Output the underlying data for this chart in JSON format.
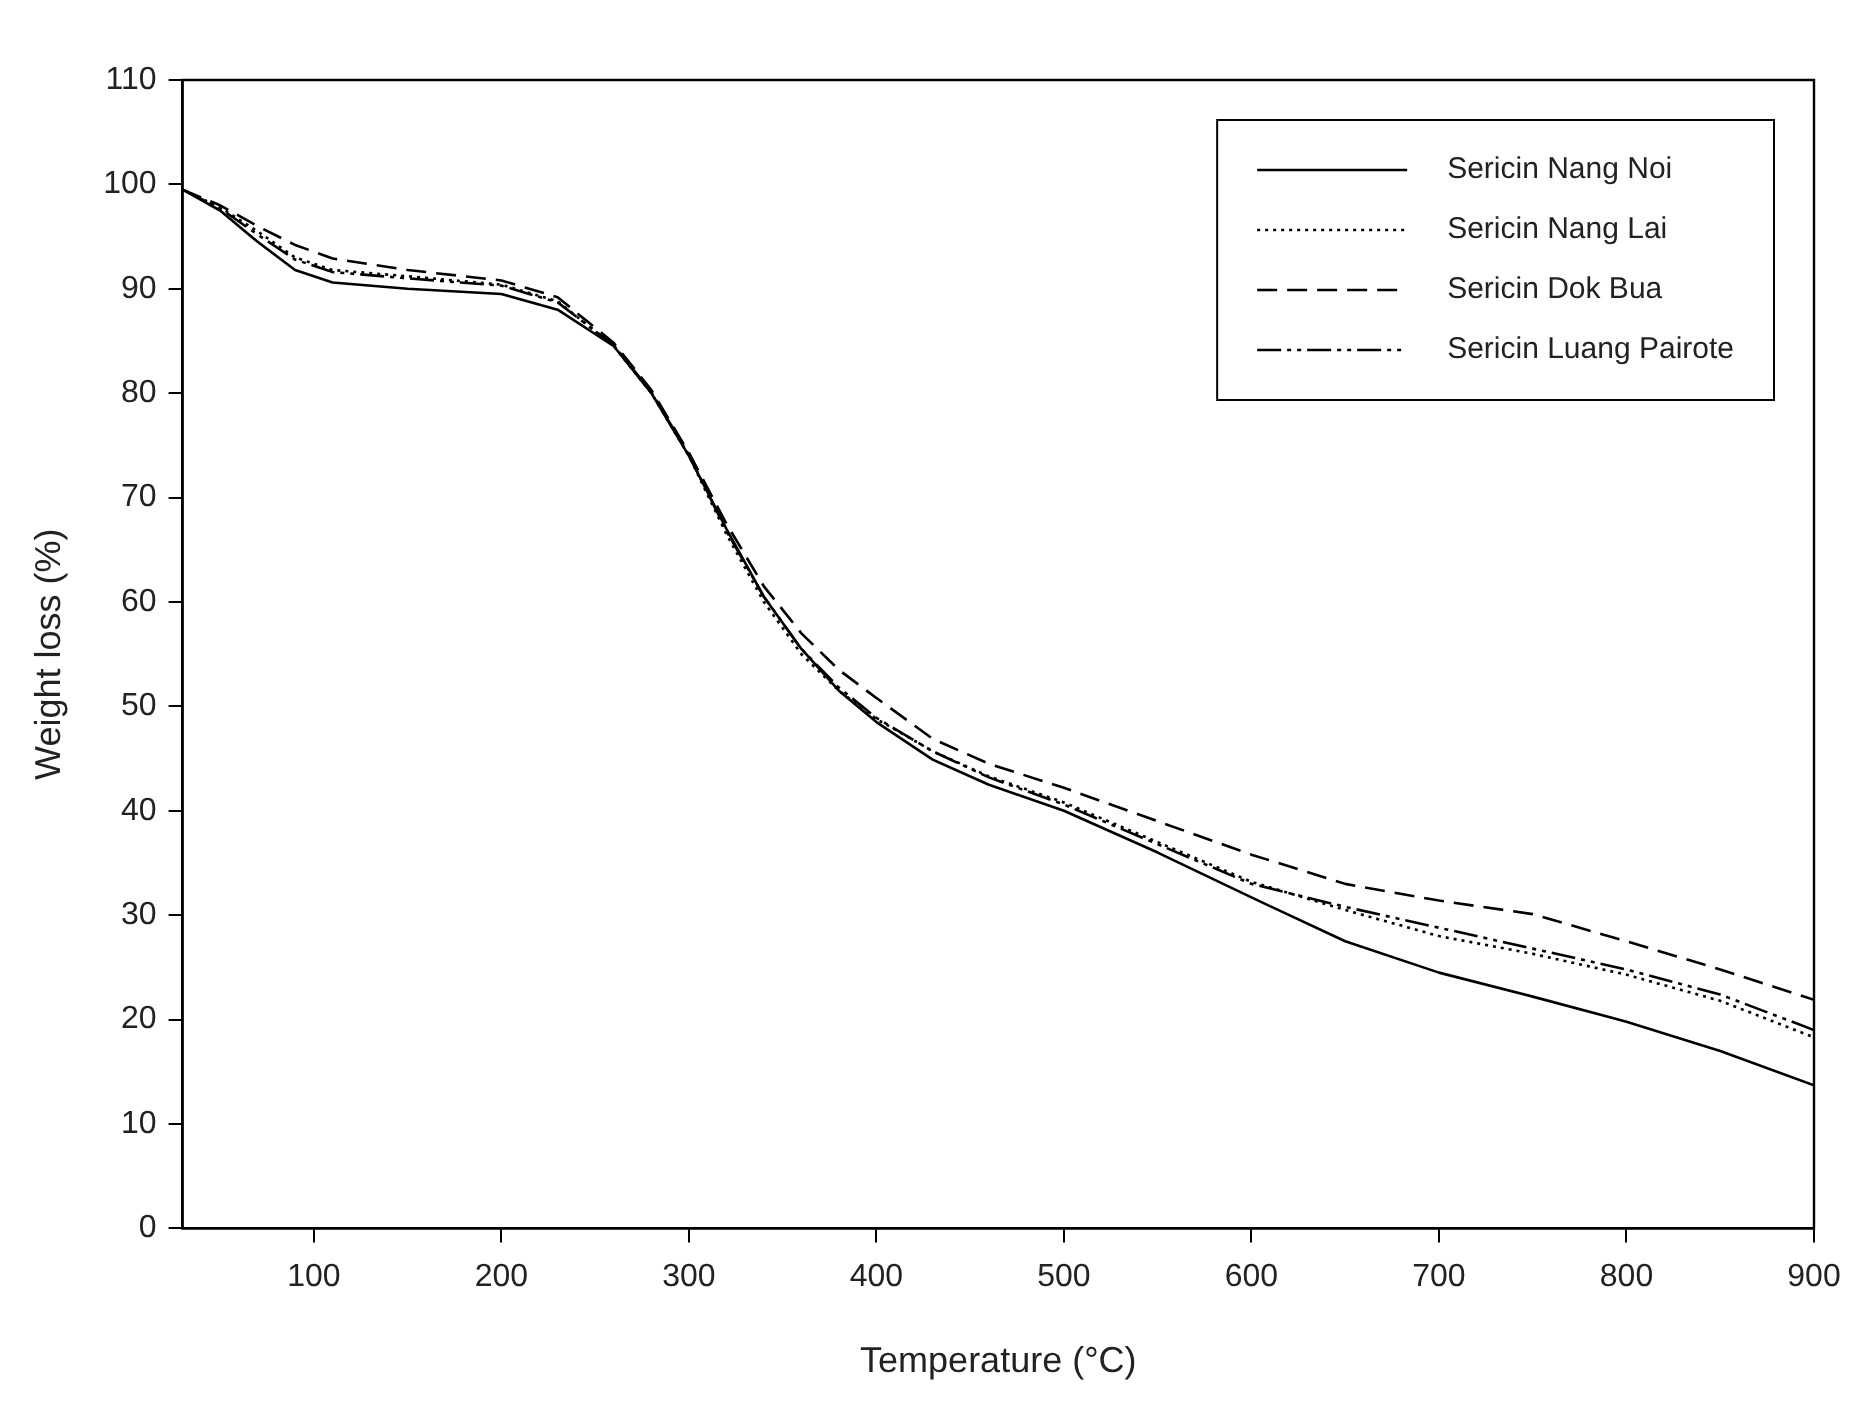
{
  "chart_data": {
    "type": "line",
    "xlabel": "Temperature (°C)",
    "ylabel": "Weight loss (%)",
    "x": [
      30,
      50,
      70,
      90,
      110,
      150,
      200,
      230,
      260,
      280,
      300,
      320,
      340,
      360,
      380,
      400,
      430,
      460,
      500,
      550,
      600,
      650,
      700,
      750,
      800,
      850,
      900
    ],
    "series": [
      {
        "name": "Sericin Nang Noi",
        "color": "#000000",
        "line_style": "solid",
        "values": [
          99.5,
          97.5,
          94.5,
          91.8,
          90.6,
          90.0,
          89.5,
          88.0,
          84.5,
          80,
          74,
          67,
          60.5,
          55.5,
          51.5,
          48.5,
          44.9,
          42.5,
          40,
          36,
          31.7,
          27.5,
          24.5,
          22.2,
          19.8,
          17,
          13.7
        ]
      },
      {
        "name": "Sericin Nang Lai",
        "color": "#000000",
        "line_style": "dotted",
        "values": [
          99.5,
          97.8,
          95.5,
          93,
          91.8,
          91.2,
          90.4,
          88.8,
          84.5,
          80,
          74,
          66.5,
          60,
          55,
          51.5,
          48.8,
          45.7,
          43.3,
          40.8,
          37,
          33.2,
          30.5,
          28,
          26.3,
          24.3,
          21.8,
          18.3
        ]
      },
      {
        "name": "Sericin Dok Bua",
        "color": "#000000",
        "line_style": "dashed",
        "values": [
          99.5,
          98,
          96,
          94.2,
          92.9,
          91.8,
          90.8,
          89.2,
          84.8,
          80.3,
          74.3,
          67.5,
          61.5,
          57,
          53.5,
          50.8,
          46.9,
          44.5,
          42.2,
          39,
          35.8,
          33,
          31.4,
          30.1,
          27.5,
          24.8,
          21.9
        ]
      },
      {
        "name": "Sericin Luang Pairote",
        "color": "#000000",
        "line_style": "dashdotdot",
        "values": [
          99.5,
          97.7,
          95.2,
          92.8,
          91.6,
          91.0,
          90.3,
          88.7,
          84.6,
          80.1,
          74.1,
          66.8,
          60.5,
          55.5,
          51.8,
          48.9,
          45.7,
          43.2,
          40.6,
          36.8,
          33,
          30.8,
          28.8,
          26.8,
          24.8,
          22.4,
          19.0
        ]
      }
    ],
    "xlim": [
      30,
      900
    ],
    "xticks": [
      100,
      200,
      300,
      400,
      500,
      600,
      700,
      800,
      900
    ],
    "ylim": [
      0,
      110
    ],
    "yticks": [
      0,
      10,
      20,
      30,
      40,
      50,
      60,
      70,
      80,
      90,
      100,
      110
    ],
    "grid": false,
    "legend": "top right",
    "marker": "none"
  }
}
